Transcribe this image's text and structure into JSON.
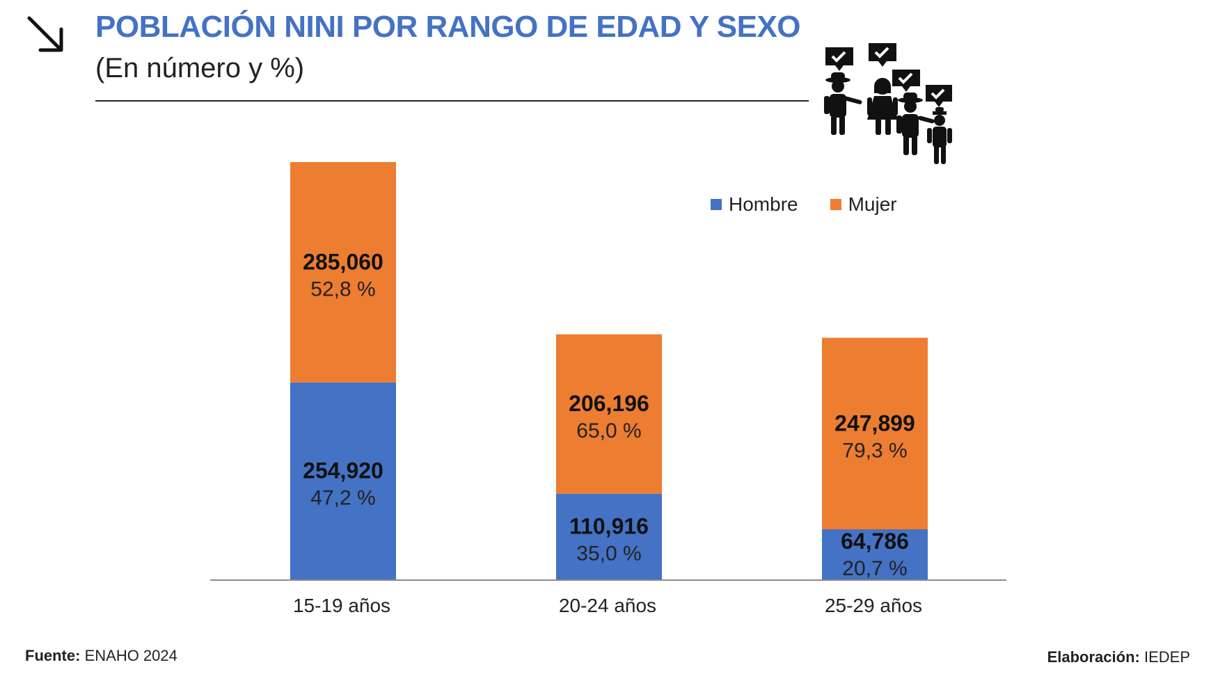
{
  "header": {
    "title": "POBLACIÓN NINI POR RANGO DE EDAD Y SEXO",
    "subtitle": "(En número y %)"
  },
  "footer": {
    "source_label": "Fuente:",
    "source_value": "ENAHO 2024",
    "credit_label": "Elaboración:",
    "credit_value": "IEDEP"
  },
  "colors": {
    "hombre": "#4472c4",
    "mujer": "#ed7d31",
    "title": "#4472c4"
  },
  "icons": [
    "arrow-down-right-icon",
    "people-chat-illustration-icon"
  ],
  "chart_data": {
    "type": "bar",
    "stacked": true,
    "categories": [
      "15-19 años",
      "20-24 años",
      "25-29 años"
    ],
    "series": [
      {
        "name": "Hombre",
        "values": [
          254920,
          110916,
          64786
        ],
        "value_labels": [
          "254,920",
          "110,916",
          "64,786"
        ],
        "pct_labels": [
          "47,2 %",
          "35,0 %",
          "20,7 %"
        ]
      },
      {
        "name": "Mujer",
        "values": [
          285060,
          206196,
          247899
        ],
        "value_labels": [
          "285,060",
          "206,196",
          "247,899"
        ],
        "pct_labels": [
          "52,8 %",
          "65,0 %",
          "79,3 %"
        ]
      }
    ],
    "ylim": [
      0,
      540000
    ],
    "legend_position": "top-right",
    "grid": false
  }
}
